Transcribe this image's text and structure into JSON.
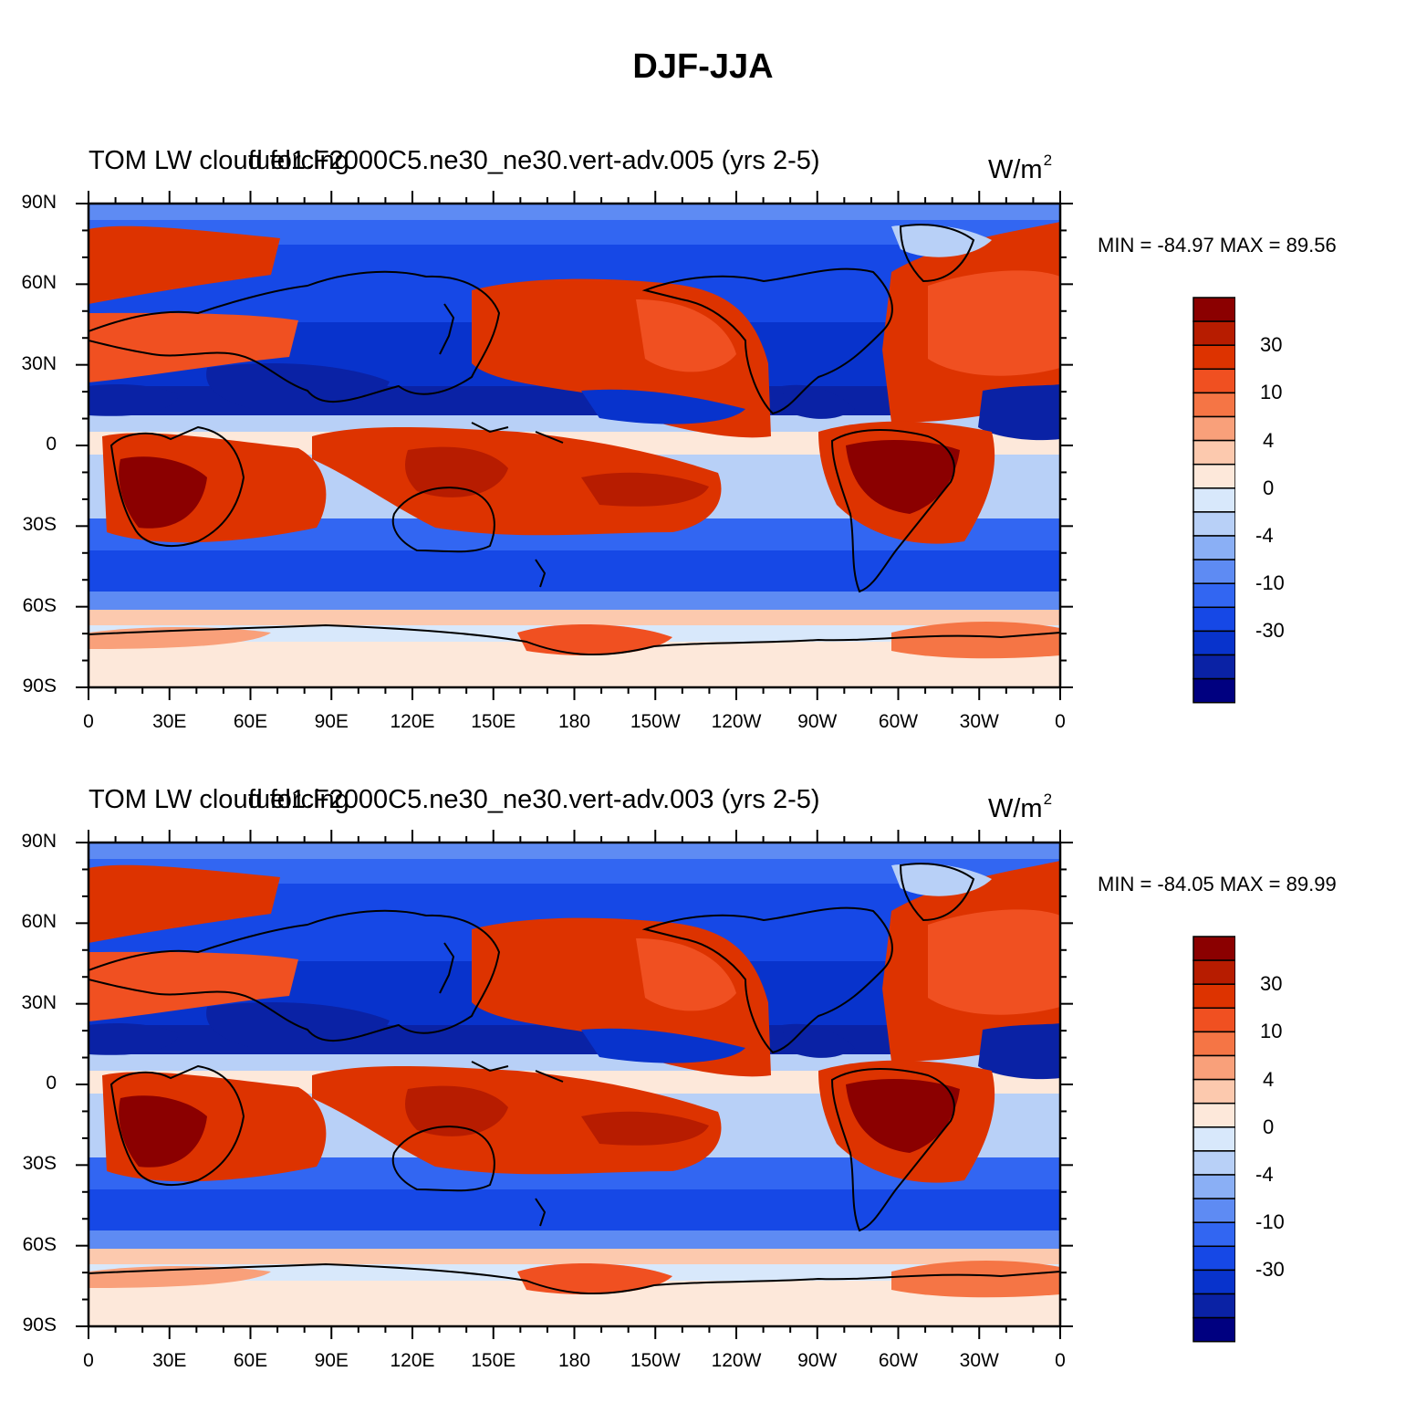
{
  "figure": {
    "title": "DJF-JJA"
  },
  "panels": [
    {
      "title_a": "TOM LW cloud forcing",
      "title_b": "fuel1.F2000C5.ne30_ne30.vert-adv.005 (yrs 2-5)",
      "units": "W/m",
      "units_sup": "2",
      "stats": "MIN = -84.97 MAX =  89.56"
    },
    {
      "title_a": "TOM LW cloud forcing",
      "title_b": "fuel1.F2000C5.ne30_ne30.vert-adv.003 (yrs 2-5)",
      "units": "W/m",
      "units_sup": "2",
      "stats": "MIN = -84.05 MAX =  89.99"
    }
  ],
  "axes": {
    "lat_labels": [
      "90N",
      "60N",
      "30N",
      "0",
      "30S",
      "60S",
      "90S"
    ],
    "lon_labels": [
      "0",
      "30E",
      "60E",
      "90E",
      "120E",
      "150E",
      "180",
      "150W",
      "120W",
      "90W",
      "60W",
      "30W",
      "0"
    ]
  },
  "colorbar": {
    "colors": [
      "#8b0000",
      "#b71c00",
      "#dd3300",
      "#f05021",
      "#f57545",
      "#f9a07a",
      "#fcc9ae",
      "#fde8da",
      "#d8e8fb",
      "#b8d0f7",
      "#8aaff5",
      "#5e8bf3",
      "#3266f2",
      "#1648e6",
      "#0833cc",
      "#0a22a5",
      "#000080"
    ],
    "labels": [
      "30",
      "10",
      "4",
      "0",
      "-4",
      "-10",
      "-30"
    ]
  }
}
